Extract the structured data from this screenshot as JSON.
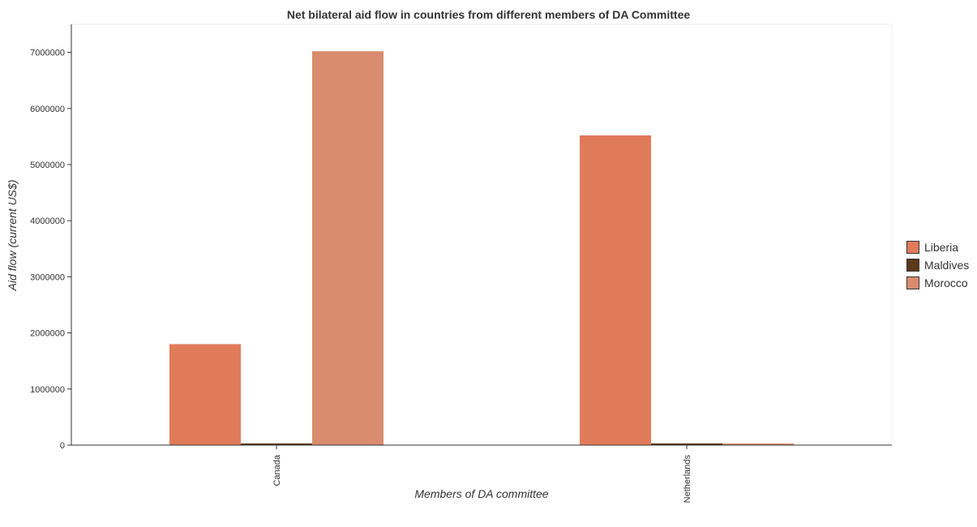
{
  "chart_data": {
    "type": "bar",
    "title": "Net bilateral aid flow in countries from different members of DA Committee",
    "xlabel": "Members of DA committee",
    "ylabel": "Aid flow (current US$)",
    "categories": [
      "Canada",
      "Netherlands"
    ],
    "series": [
      {
        "name": "Liberia",
        "color": "#E07B5A",
        "values": [
          1800000,
          5520000
        ]
      },
      {
        "name": "Maldives",
        "color": "#5A3A1A",
        "values": [
          30000,
          30000
        ]
      },
      {
        "name": "Morocco",
        "color": "#D98C6E",
        "values": [
          7020000,
          30000
        ]
      }
    ],
    "ylim": [
      0,
      7500000
    ],
    "yticks": [
      0,
      1000000,
      2000000,
      3000000,
      4000000,
      5000000,
      6000000,
      7000000
    ],
    "ytick_labels": [
      "0",
      "1000000",
      "2000000",
      "3000000",
      "4000000",
      "5000000",
      "6000000",
      "7000000"
    ],
    "grid": false,
    "legend_position": "right"
  }
}
